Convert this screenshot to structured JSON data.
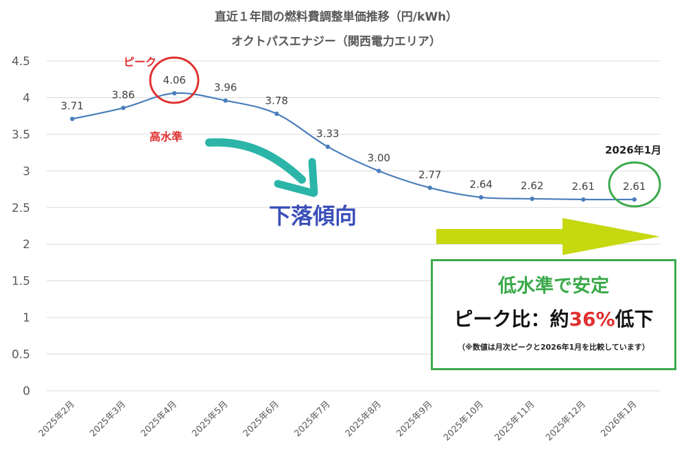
{
  "chart_data": {
    "type": "line",
    "title": "直近１年間の燃料費調整単価推移（円/kWh）",
    "subtitle": "オクトパスエナジー（関西電力エリア）",
    "categories": [
      "2025年2月",
      "2025年3月",
      "2025年4月",
      "2025年5月",
      "2025年6月",
      "2025年7月",
      "2025年8月",
      "2025年9月",
      "2025年10月",
      "2025年11月",
      "2025年12月",
      "2026年1月"
    ],
    "series": [
      {
        "values": [
          3.71,
          3.86,
          4.06,
          3.96,
          3.78,
          3.33,
          3.0,
          2.77,
          2.64,
          2.62,
          2.61,
          2.61
        ]
      }
    ],
    "data_labels": [
      "3.71",
      "3.86",
      "4.06",
      "3.96",
      "3.78",
      "3.33",
      "3.00",
      "2.77",
      "2.64",
      "2.62",
      "2.61",
      "2.61"
    ],
    "ylim": [
      0,
      4.5
    ],
    "yticks": [
      "0",
      "0.5",
      "1",
      "1.5",
      "2",
      "2.5",
      "3",
      "3.5",
      "4",
      "4.5"
    ],
    "grid": true,
    "series_color": "#4a7ebb"
  },
  "annotations": {
    "peak_label": "ピーク",
    "high_level": "高水準",
    "trend": "下落傾向",
    "latest_label": "2026年1月",
    "box_heading": "低水準で安定",
    "box_ratio_prefix": "ピーク比：約",
    "box_ratio_pct": "36%",
    "box_ratio_suffix": "低下",
    "box_note": "（※数値は月次ピークと2026年1月を比較しています）",
    "colors": {
      "red": "#e03030",
      "green": "#3aa94a",
      "teal": "#2bb5a8",
      "lime": "#c6d810",
      "blue": "#3a4fb8"
    }
  }
}
